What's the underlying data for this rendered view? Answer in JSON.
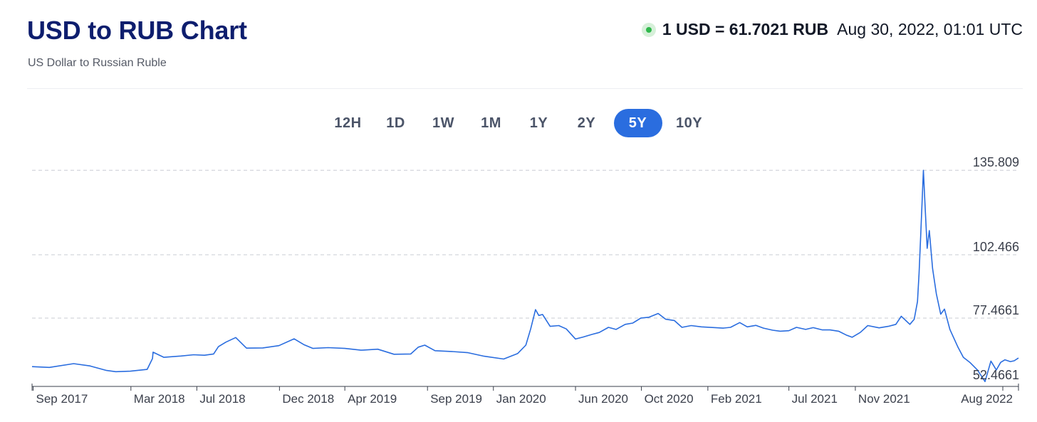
{
  "header": {
    "title": "USD to RUB Chart",
    "subtitle": "US Dollar to Russian Ruble",
    "rate_text": "1 USD = 61.7021 RUB",
    "timestamp": "Aug 30, 2022, 01:01 UTC",
    "live_color": "#2fb84c"
  },
  "ranges": [
    {
      "label": "12H",
      "active": false
    },
    {
      "label": "1D",
      "active": false
    },
    {
      "label": "1W",
      "active": false
    },
    {
      "label": "1M",
      "active": false
    },
    {
      "label": "1Y",
      "active": false
    },
    {
      "label": "2Y",
      "active": false
    },
    {
      "label": "5Y",
      "active": true
    },
    {
      "label": "10Y",
      "active": false
    }
  ],
  "chart_data": {
    "type": "line",
    "title": "USD to RUB Chart",
    "xlabel": "",
    "ylabel": "",
    "line_color": "#2a6ddf",
    "grid": "horizontal dashed",
    "y_ticks": [
      "135.809",
      "102.466",
      "77.4661",
      "52.4661"
    ],
    "y_tick_values": [
      135.809,
      102.466,
      77.4661,
      52.4661
    ],
    "x_ticks": [
      "Sep 2017",
      "Mar 2018",
      "Jul 2018",
      "Dec 2018",
      "Apr 2019",
      "Sep 2019",
      "Jan 2020",
      "Jun 2020",
      "Oct 2020",
      "Feb 2021",
      "Jul 2021",
      "Nov 2021",
      "Aug 2022"
    ],
    "x_tick_dates": [
      "2017-09-01",
      "2018-03-01",
      "2018-07-01",
      "2018-12-01",
      "2019-04-01",
      "2019-09-01",
      "2020-01-01",
      "2020-06-01",
      "2020-10-01",
      "2021-02-01",
      "2021-07-01",
      "2021-11-01",
      "2022-08-01"
    ],
    "xlim": [
      "2017-08-30",
      "2022-08-30"
    ],
    "ylim": [
      50.5,
      137.0
    ],
    "series": [
      {
        "points": [
          [
            "2017-08-30",
            58.3
          ],
          [
            "2017-10-01",
            58.0
          ],
          [
            "2017-11-15",
            59.5
          ],
          [
            "2017-12-15",
            58.6
          ],
          [
            "2018-01-15",
            56.8
          ],
          [
            "2018-02-01",
            56.3
          ],
          [
            "2018-02-28",
            56.5
          ],
          [
            "2018-03-31",
            57.2
          ],
          [
            "2018-04-10",
            61.5
          ],
          [
            "2018-04-11",
            64.0
          ],
          [
            "2018-05-01",
            62.0
          ],
          [
            "2018-06-01",
            62.5
          ],
          [
            "2018-06-25",
            63.0
          ],
          [
            "2018-07-15",
            62.8
          ],
          [
            "2018-08-01",
            63.3
          ],
          [
            "2018-08-10",
            66.2
          ],
          [
            "2018-08-24",
            68.0
          ],
          [
            "2018-09-11",
            69.8
          ],
          [
            "2018-10-01",
            65.6
          ],
          [
            "2018-10-31",
            65.7
          ],
          [
            "2018-11-30",
            66.6
          ],
          [
            "2018-12-28",
            69.3
          ],
          [
            "2019-01-15",
            67.0
          ],
          [
            "2019-02-01",
            65.5
          ],
          [
            "2019-03-01",
            65.8
          ],
          [
            "2019-04-01",
            65.5
          ],
          [
            "2019-05-01",
            64.8
          ],
          [
            "2019-06-01",
            65.2
          ],
          [
            "2019-07-01",
            63.2
          ],
          [
            "2019-08-01",
            63.3
          ],
          [
            "2019-08-15",
            66.0
          ],
          [
            "2019-08-27",
            66.8
          ],
          [
            "2019-09-15",
            64.6
          ],
          [
            "2019-10-15",
            64.3
          ],
          [
            "2019-11-15",
            63.8
          ],
          [
            "2019-12-15",
            62.4
          ],
          [
            "2020-01-20",
            61.3
          ],
          [
            "2020-02-15",
            63.5
          ],
          [
            "2020-03-01",
            66.8
          ],
          [
            "2020-03-10",
            73.2
          ],
          [
            "2020-03-19",
            80.8
          ],
          [
            "2020-03-25",
            78.5
          ],
          [
            "2020-04-01",
            78.9
          ],
          [
            "2020-04-15",
            74.2
          ],
          [
            "2020-05-01",
            74.5
          ],
          [
            "2020-05-15",
            73.2
          ],
          [
            "2020-06-01",
            69.2
          ],
          [
            "2020-06-15",
            70.0
          ],
          [
            "2020-07-01",
            71.0
          ],
          [
            "2020-07-15",
            71.8
          ],
          [
            "2020-08-01",
            73.8
          ],
          [
            "2020-08-15",
            73.0
          ],
          [
            "2020-09-01",
            75.0
          ],
          [
            "2020-09-15",
            75.5
          ],
          [
            "2020-09-30",
            77.5
          ],
          [
            "2020-10-15",
            77.8
          ],
          [
            "2020-11-01",
            79.3
          ],
          [
            "2020-11-15",
            77.0
          ],
          [
            "2020-12-01",
            76.5
          ],
          [
            "2020-12-15",
            73.8
          ],
          [
            "2021-01-01",
            74.5
          ],
          [
            "2021-01-20",
            74.0
          ],
          [
            "2021-02-15",
            73.7
          ],
          [
            "2021-03-01",
            73.5
          ],
          [
            "2021-03-15",
            73.8
          ],
          [
            "2021-04-01",
            75.7
          ],
          [
            "2021-04-15",
            74.0
          ],
          [
            "2021-05-01",
            74.6
          ],
          [
            "2021-05-15",
            73.5
          ],
          [
            "2021-06-01",
            72.7
          ],
          [
            "2021-06-15",
            72.3
          ],
          [
            "2021-07-01",
            72.5
          ],
          [
            "2021-07-15",
            73.8
          ],
          [
            "2021-08-01",
            73.0
          ],
          [
            "2021-08-15",
            73.7
          ],
          [
            "2021-09-01",
            72.8
          ],
          [
            "2021-09-15",
            72.8
          ],
          [
            "2021-10-01",
            72.3
          ],
          [
            "2021-10-15",
            70.8
          ],
          [
            "2021-10-26",
            69.9
          ],
          [
            "2021-11-10",
            71.8
          ],
          [
            "2021-11-24",
            74.5
          ],
          [
            "2021-12-15",
            73.6
          ],
          [
            "2022-01-01",
            74.2
          ],
          [
            "2022-01-15",
            75.0
          ],
          [
            "2022-01-25",
            78.2
          ],
          [
            "2022-02-10",
            75.0
          ],
          [
            "2022-02-18",
            77.0
          ],
          [
            "2022-02-24",
            84.0
          ],
          [
            "2022-02-27",
            95.0
          ],
          [
            "2022-03-02",
            110.0
          ],
          [
            "2022-03-07",
            135.8
          ],
          [
            "2022-03-10",
            122.0
          ],
          [
            "2022-03-14",
            105.0
          ],
          [
            "2022-03-18",
            112.0
          ],
          [
            "2022-03-24",
            97.0
          ],
          [
            "2022-03-31",
            87.0
          ],
          [
            "2022-04-08",
            79.0
          ],
          [
            "2022-04-15",
            81.0
          ],
          [
            "2022-04-25",
            73.0
          ],
          [
            "2022-05-10",
            66.0
          ],
          [
            "2022-05-20",
            62.0
          ],
          [
            "2022-06-01",
            60.0
          ],
          [
            "2022-06-15",
            57.0
          ],
          [
            "2022-06-29",
            52.4
          ],
          [
            "2022-07-10",
            60.5
          ],
          [
            "2022-07-20",
            57.0
          ],
          [
            "2022-07-28",
            60.0
          ],
          [
            "2022-08-05",
            61.0
          ],
          [
            "2022-08-15",
            60.3
          ],
          [
            "2022-08-22",
            60.6
          ],
          [
            "2022-08-30",
            61.7
          ]
        ]
      }
    ]
  }
}
